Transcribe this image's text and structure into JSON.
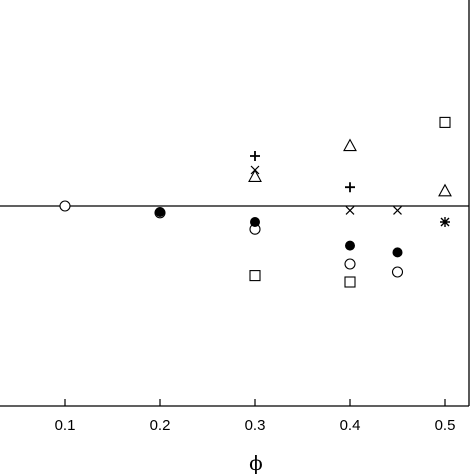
{
  "chart_data": {
    "type": "scatter",
    "xlabel": "ϕ",
    "ylabel": "",
    "xlim": [
      0.0,
      0.535
    ],
    "ylim": [
      -5.2,
      5.2
    ],
    "grid": false,
    "reference_line_y": 0,
    "x_ticks": [
      {
        "value": 0.1,
        "label": "0.1"
      },
      {
        "value": 0.2,
        "label": "0.2"
      },
      {
        "value": 0.3,
        "label": "0.3"
      },
      {
        "value": 0.4,
        "label": "0.4"
      },
      {
        "value": 0.5,
        "label": "0.5"
      }
    ],
    "series": [
      {
        "marker": "open-circle",
        "points": [
          [
            0.1,
            0.0
          ],
          [
            0.2,
            -0.17
          ],
          [
            0.3,
            -0.58
          ],
          [
            0.4,
            -1.45
          ],
          [
            0.45,
            -1.65
          ]
        ]
      },
      {
        "marker": "filled-circle",
        "points": [
          [
            0.2,
            -0.15
          ],
          [
            0.3,
            -0.4
          ],
          [
            0.4,
            -0.99
          ],
          [
            0.45,
            -1.16
          ]
        ]
      },
      {
        "marker": "open-square",
        "points": [
          [
            0.3,
            -1.74
          ],
          [
            0.4,
            -1.9
          ],
          [
            0.5,
            2.09
          ]
        ]
      },
      {
        "marker": "open-triangle",
        "points": [
          [
            0.3,
            0.74
          ],
          [
            0.4,
            1.51
          ],
          [
            0.5,
            0.38
          ]
        ]
      },
      {
        "marker": "plus",
        "points": [
          [
            0.3,
            1.25
          ],
          [
            0.4,
            0.47
          ]
        ]
      },
      {
        "marker": "cross",
        "points": [
          [
            0.3,
            0.9
          ],
          [
            0.4,
            -0.11
          ],
          [
            0.45,
            -0.11
          ]
        ]
      },
      {
        "marker": "asterisk",
        "points": [
          [
            0.5,
            -0.4
          ]
        ]
      }
    ]
  }
}
